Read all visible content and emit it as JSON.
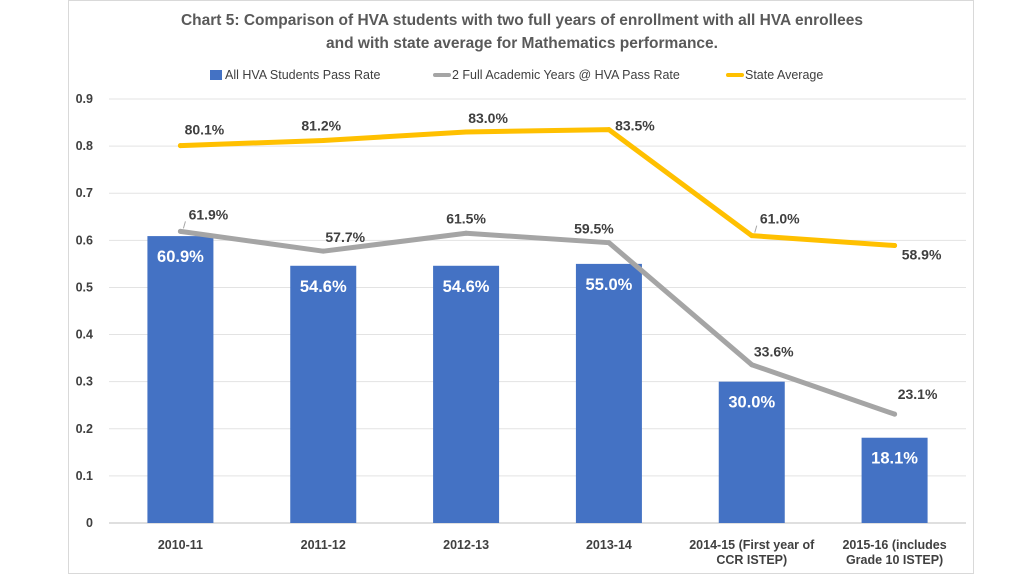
{
  "chart_data": {
    "type": "bar",
    "title_lines": [
      "Chart 5: Comparison of HVA students with two full years of enrollment with all HVA enrollees",
      "and with state average for Mathematics performance."
    ],
    "categories": [
      [
        "2010-11"
      ],
      [
        "2011-12"
      ],
      [
        "2012-13"
      ],
      [
        "2013-14"
      ],
      [
        "2014-15 (First year of",
        "CCR ISTEP)"
      ],
      [
        "2015-16 (includes",
        "Grade 10 ISTEP)"
      ]
    ],
    "ylim": [
      0,
      0.9
    ],
    "yticks": [
      "0",
      "0.1",
      "0.2",
      "0.3",
      "0.4",
      "0.5",
      "0.6",
      "0.7",
      "0.8",
      "0.9"
    ],
    "ytick_values": [
      0,
      0.1,
      0.2,
      0.3,
      0.4,
      0.5,
      0.6,
      0.7,
      0.8,
      0.9
    ],
    "gridlines": true,
    "legend_position": "top-center",
    "series": [
      {
        "name": "All HVA Students Pass Rate",
        "kind": "bar",
        "color": "#4472c4",
        "values": [
          0.609,
          0.546,
          0.546,
          0.55,
          0.3,
          0.181
        ],
        "labels": [
          "60.9%",
          "54.6%",
          "54.6%",
          "55.0%",
          "30.0%",
          "18.1%"
        ]
      },
      {
        "name": "2 Full Academic Years @ HVA Pass Rate",
        "kind": "line",
        "color": "#a5a5a5",
        "values": [
          0.619,
          0.577,
          0.615,
          0.595,
          0.336,
          0.231
        ],
        "labels": [
          "61.9%",
          "57.7%",
          "61.5%",
          "59.5%",
          "33.6%",
          "23.1%"
        ]
      },
      {
        "name": "State Average",
        "kind": "line",
        "color": "#ffc000",
        "values": [
          0.801,
          0.812,
          0.83,
          0.835,
          0.61,
          0.589
        ],
        "labels": [
          "80.1%",
          "81.2%",
          "83.0%",
          "83.5%",
          "61.0%",
          "58.9%"
        ]
      }
    ]
  }
}
